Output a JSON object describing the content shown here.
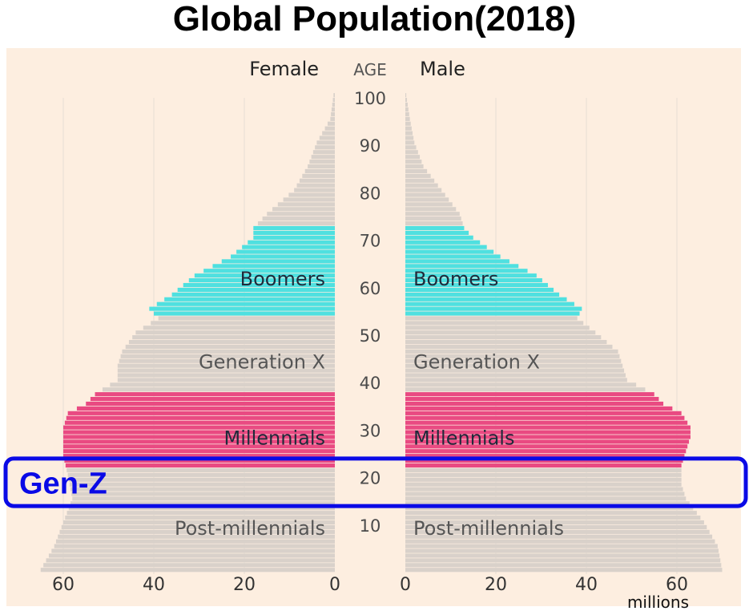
{
  "title": "Global Population(2018)",
  "chart_data": {
    "type": "bar",
    "orientation": "horizontal-pyramid",
    "title": "Global Population(2018)",
    "left_label": "Female",
    "center_label": "AGE",
    "right_label": "Male",
    "units_label": "millions",
    "xlim": [
      0,
      70
    ],
    "x_ticks": [
      0,
      20,
      40,
      60
    ],
    "age_ticks": [
      100,
      90,
      80,
      70,
      60,
      50,
      40,
      30,
      20,
      10
    ],
    "age_range": [
      0,
      100
    ],
    "colors": {
      "background": "#fdeee0",
      "base": "#d9d1ca",
      "boomers": "#4fe0e0",
      "millennials": "#e94a82",
      "grid": "#e6ddd4",
      "highlight": "#0a0ae6"
    },
    "groups": [
      {
        "name": "Post-millennials",
        "age_from": 0,
        "age_to": 21
      },
      {
        "name": "Millennials",
        "age_from": 22,
        "age_to": 37,
        "color": "millennials"
      },
      {
        "name": "Generation X",
        "age_from": 38,
        "age_to": 53
      },
      {
        "name": "Boomers",
        "age_from": 54,
        "age_to": 72,
        "color": "boomers"
      }
    ],
    "highlight": {
      "label": "Gen-Z",
      "age_from": 14,
      "age_to": 24
    },
    "female_profile": [
      [
        0,
        65
      ],
      [
        5,
        62
      ],
      [
        10,
        60
      ],
      [
        15,
        58
      ],
      [
        20,
        59
      ],
      [
        24,
        60
      ],
      [
        28,
        60
      ],
      [
        30,
        60
      ],
      [
        33,
        59
      ],
      [
        35,
        55
      ],
      [
        37,
        53
      ],
      [
        40,
        48
      ],
      [
        43,
        48
      ],
      [
        46,
        47
      ],
      [
        50,
        44
      ],
      [
        53,
        39
      ],
      [
        55,
        41
      ],
      [
        58,
        36
      ],
      [
        62,
        31
      ],
      [
        66,
        23
      ],
      [
        70,
        18
      ],
      [
        72,
        18
      ],
      [
        75,
        15
      ],
      [
        80,
        9
      ],
      [
        85,
        6
      ],
      [
        90,
        4
      ],
      [
        95,
        1
      ],
      [
        100,
        0.3
      ]
    ],
    "male_profile": [
      [
        0,
        70
      ],
      [
        5,
        69
      ],
      [
        10,
        66
      ],
      [
        15,
        62
      ],
      [
        18,
        61
      ],
      [
        20,
        61
      ],
      [
        22,
        61
      ],
      [
        25,
        62
      ],
      [
        28,
        63
      ],
      [
        30,
        63
      ],
      [
        33,
        61
      ],
      [
        35,
        57
      ],
      [
        37,
        55
      ],
      [
        40,
        49
      ],
      [
        43,
        48
      ],
      [
        46,
        47
      ],
      [
        50,
        42
      ],
      [
        53,
        38
      ],
      [
        55,
        39
      ],
      [
        58,
        34
      ],
      [
        62,
        29
      ],
      [
        66,
        21
      ],
      [
        70,
        15
      ],
      [
        72,
        13
      ],
      [
        75,
        12
      ],
      [
        80,
        8
      ],
      [
        85,
        4
      ],
      [
        90,
        2
      ],
      [
        95,
        1
      ],
      [
        100,
        0.2
      ]
    ]
  }
}
